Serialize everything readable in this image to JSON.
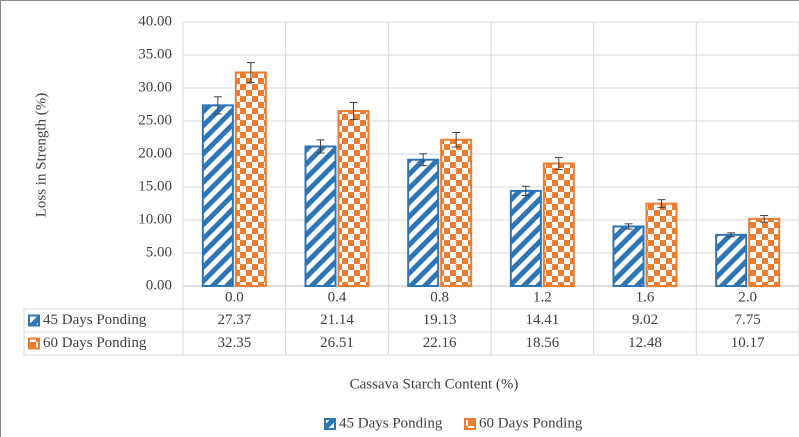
{
  "chart_data": {
    "type": "bar",
    "y_label": "Loss in Strength (%)",
    "x_label": "Cassava Starch Content (%)",
    "categories": [
      "0.0",
      "0.4",
      "0.8",
      "1.2",
      "1.6",
      "2.0"
    ],
    "series": [
      {
        "name": "45 Days Ponding",
        "color": "#2e75b6",
        "pattern": "stripes",
        "values": [
          27.37,
          21.14,
          19.13,
          14.41,
          9.02,
          7.75
        ],
        "errors": [
          1.3,
          1.0,
          0.9,
          0.7,
          0.4,
          0.3
        ]
      },
      {
        "name": "60 Days Ponding",
        "color": "#ed7d31",
        "pattern": "checker",
        "values": [
          32.35,
          26.51,
          22.16,
          18.56,
          12.48,
          10.17
        ],
        "errors": [
          1.5,
          1.3,
          1.1,
          0.9,
          0.6,
          0.5
        ]
      }
    ],
    "ylim": [
      0,
      40
    ],
    "yticks": [
      {
        "value": 0,
        "label": "0.00"
      },
      {
        "value": 5,
        "label": "5.00"
      },
      {
        "value": 10,
        "label": "10.00"
      },
      {
        "value": 15,
        "label": "15.00"
      },
      {
        "value": 20,
        "label": "20.00"
      },
      {
        "value": 25,
        "label": "25.00"
      },
      {
        "value": 30,
        "label": "30.00"
      },
      {
        "value": 35,
        "label": "35.00"
      },
      {
        "value": 40,
        "label": "40.00"
      }
    ],
    "grid": true,
    "data_table": true,
    "legend": "bottom"
  }
}
